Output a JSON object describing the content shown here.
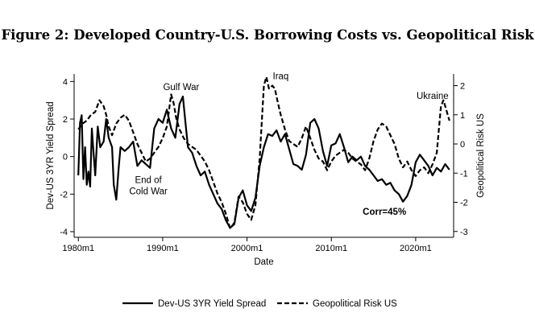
{
  "figure": {
    "title": "Figure 2: Developed Country-U.S. Borrowing Costs vs. Geopolitical Risk"
  },
  "chart_data": {
    "type": "line",
    "xlabel": "Date",
    "ylabel_left": "Dev-US 3YR Yield Spread",
    "ylabel_right": "Geopolitical Risk US",
    "xlim": [
      1979.5,
      2024.5
    ],
    "ylim_left": [
      -4.3,
      4.4
    ],
    "ylim_right": [
      -3.2,
      2.4
    ],
    "x_ticks": [
      {
        "value": 1980,
        "label": "1980m1"
      },
      {
        "value": 1990,
        "label": "1990m1"
      },
      {
        "value": 2000,
        "label": "2000m1"
      },
      {
        "value": 2010,
        "label": "2010m1"
      },
      {
        "value": 2020,
        "label": "2020m1"
      }
    ],
    "y_left_ticks": [
      {
        "value": -4,
        "label": "-4"
      },
      {
        "value": -2,
        "label": "-2"
      },
      {
        "value": 0,
        "label": "0"
      },
      {
        "value": 2,
        "label": "2"
      },
      {
        "value": 4,
        "label": "4"
      }
    ],
    "y_right_ticks": [
      {
        "value": -3,
        "label": "-3"
      },
      {
        "value": -2,
        "label": "-2"
      },
      {
        "value": -1,
        "label": "-1"
      },
      {
        "value": 0,
        "label": "0"
      },
      {
        "value": 1,
        "label": "1"
      },
      {
        "value": 2,
        "label": "2"
      }
    ],
    "grid": false,
    "legend_position": "bottom",
    "series": [
      {
        "name": "Dev-US 3YR Yield Spread",
        "axis": "left",
        "style": "solid",
        "color": "#000000",
        "x": [
          1980.0,
          1980.2,
          1980.4,
          1980.6,
          1980.8,
          1981.0,
          1981.2,
          1981.4,
          1981.6,
          1981.8,
          1982.0,
          1982.3,
          1982.6,
          1983.0,
          1983.3,
          1983.6,
          1984.0,
          1984.2,
          1984.5,
          1984.8,
          1985.0,
          1985.5,
          1986.0,
          1986.5,
          1987.0,
          1987.5,
          1988.0,
          1988.5,
          1989.0,
          1989.5,
          1990.0,
          1990.5,
          1991.0,
          1991.5,
          1992.0,
          1992.4,
          1992.7,
          1993.0,
          1993.5,
          1994.0,
          1994.5,
          1995.0,
          1995.5,
          1996.0,
          1996.5,
          1997.0,
          1997.5,
          1998.0,
          1998.5,
          1999.0,
          1999.5,
          2000.0,
          2000.5,
          2001.0,
          2001.5,
          2002.0,
          2002.5,
          2003.0,
          2003.5,
          2004.0,
          2004.5,
          2005.0,
          2005.5,
          2006.0,
          2006.5,
          2007.0,
          2007.5,
          2008.0,
          2008.5,
          2009.0,
          2009.5,
          2010.0,
          2010.5,
          2011.0,
          2011.5,
          2012.0,
          2012.5,
          2013.0,
          2013.5,
          2014.0,
          2014.5,
          2015.0,
          2015.5,
          2016.0,
          2016.5,
          2017.0,
          2017.5,
          2018.0,
          2018.5,
          2019.0,
          2019.5,
          2020.0,
          2020.5,
          2021.0,
          2021.5,
          2022.0,
          2022.5,
          2023.0,
          2023.5,
          2024.0
        ],
        "values": [
          -1.0,
          1.8,
          2.2,
          -1.2,
          0.5,
          -1.5,
          -0.8,
          -1.6,
          1.5,
          0.2,
          -1.0,
          1.6,
          0.5,
          0.8,
          2.0,
          1.0,
          0.5,
          -1.5,
          -2.3,
          -0.5,
          0.5,
          0.3,
          0.5,
          0.8,
          -0.5,
          -0.2,
          -0.4,
          -0.6,
          1.5,
          2.0,
          1.8,
          2.5,
          1.5,
          1.0,
          2.8,
          3.2,
          1.8,
          0.5,
          0.2,
          -0.5,
          -1.0,
          -0.8,
          -1.5,
          -2.0,
          -2.5,
          -2.8,
          -3.4,
          -3.8,
          -3.6,
          -2.2,
          -1.8,
          -2.6,
          -2.9,
          -2.2,
          -0.5,
          0.5,
          1.2,
          1.1,
          1.4,
          0.8,
          1.2,
          0.4,
          -0.4,
          -0.5,
          -0.7,
          0.1,
          1.8,
          2.0,
          1.5,
          0.3,
          -0.5,
          0.6,
          0.7,
          1.2,
          0.5,
          -0.3,
          0.0,
          -0.2,
          0.0,
          -0.5,
          -0.7,
          -1.0,
          -1.3,
          -1.2,
          -1.5,
          -1.4,
          -1.8,
          -2.0,
          -2.4,
          -2.1,
          -1.5,
          -0.3,
          0.1,
          -0.2,
          -0.5,
          -1.0,
          -0.6,
          -0.8,
          -0.4,
          -0.7
        ]
      },
      {
        "name": "Geopolitical Risk US",
        "axis": "right",
        "style": "dashed",
        "color": "#000000",
        "x": [
          1980.0,
          1980.5,
          1981.0,
          1981.5,
          1982.0,
          1982.5,
          1983.0,
          1983.3,
          1983.6,
          1984.0,
          1984.5,
          1985.0,
          1985.5,
          1986.0,
          1986.5,
          1987.0,
          1987.5,
          1988.0,
          1988.5,
          1989.0,
          1989.5,
          1990.0,
          1990.5,
          1991.0,
          1991.3,
          1991.6,
          1992.0,
          1992.5,
          1993.0,
          1993.5,
          1994.0,
          1994.5,
          1995.0,
          1995.5,
          1996.0,
          1996.5,
          1997.0,
          1997.5,
          1998.0,
          1998.5,
          1999.0,
          1999.5,
          2000.0,
          2000.5,
          2001.0,
          2001.5,
          2002.0,
          2002.3,
          2002.6,
          2003.0,
          2003.3,
          2003.6,
          2004.0,
          2004.5,
          2005.0,
          2005.5,
          2006.0,
          2006.5,
          2007.0,
          2007.5,
          2008.0,
          2008.5,
          2009.0,
          2009.5,
          2010.0,
          2010.5,
          2011.0,
          2011.5,
          2012.0,
          2012.5,
          2013.0,
          2013.5,
          2014.0,
          2014.5,
          2015.0,
          2015.5,
          2016.0,
          2016.5,
          2017.0,
          2017.5,
          2018.0,
          2018.5,
          2019.0,
          2019.5,
          2020.0,
          2020.5,
          2021.0,
          2021.5,
          2022.0,
          2022.5,
          2023.0,
          2023.3,
          2023.6,
          2024.0
        ],
        "values": [
          0.5,
          0.7,
          0.8,
          1.0,
          1.1,
          1.5,
          1.3,
          1.0,
          0.6,
          0.3,
          0.7,
          0.9,
          1.0,
          0.8,
          0.4,
          0.0,
          -0.3,
          -0.6,
          -0.5,
          -0.3,
          -0.1,
          0.2,
          0.6,
          1.7,
          1.4,
          0.9,
          0.5,
          0.2,
          0.0,
          -0.1,
          -0.2,
          -0.4,
          -0.6,
          -0.9,
          -1.3,
          -1.7,
          -2.0,
          -2.4,
          -2.9,
          -2.7,
          -1.8,
          -2.0,
          -2.4,
          -2.6,
          -2.1,
          -0.5,
          2.0,
          2.3,
          1.9,
          2.0,
          1.9,
          1.5,
          1.0,
          0.5,
          0.1,
          0.0,
          -0.1,
          0.2,
          0.6,
          0.2,
          -0.2,
          -0.5,
          -0.6,
          -0.9,
          -0.6,
          -0.4,
          -0.3,
          -0.2,
          -0.3,
          -0.5,
          -0.6,
          -0.7,
          -0.9,
          -0.5,
          0.1,
          0.5,
          0.7,
          0.6,
          0.3,
          0.0,
          -0.5,
          -0.8,
          -0.6,
          -0.9,
          -1.1,
          -0.9,
          -0.8,
          -1.0,
          -0.7,
          -0.3,
          1.3,
          1.5,
          1.2,
          0.8
        ]
      }
    ],
    "annotations": [
      {
        "id": "gulf-war",
        "text": "Gulf War",
        "x": 1992.2,
        "axis": "left",
        "y": 3.55
      },
      {
        "id": "iraq",
        "text": "Iraq",
        "x": 2004.0,
        "axis": "right",
        "y": 2.22
      },
      {
        "id": "ukraine",
        "text": "Ukraine",
        "x": 2022.0,
        "axis": "right",
        "y": 1.55
      },
      {
        "id": "end-of",
        "text": "End of",
        "x": 1988.3,
        "axis": "left",
        "y": -1.4
      },
      {
        "id": "cold-war",
        "text": "Cold War",
        "x": 1988.3,
        "axis": "left",
        "y": -2.0
      },
      {
        "id": "corr",
        "text": "Corr=45%",
        "x": 2016.3,
        "axis": "left",
        "y": -3.1
      }
    ]
  }
}
